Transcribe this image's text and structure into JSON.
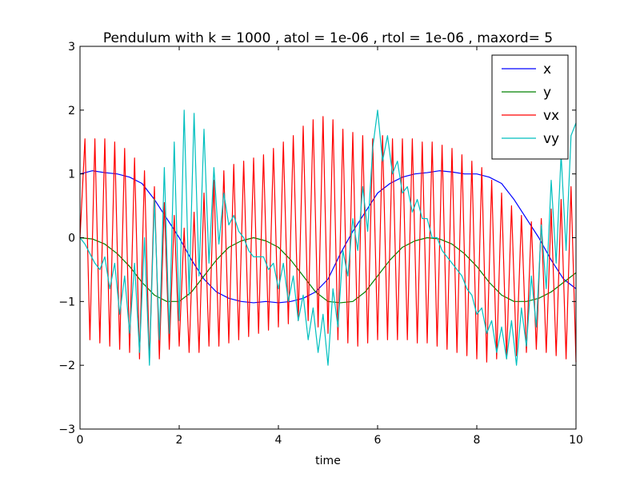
{
  "chart_data": {
    "type": "line",
    "title": "Pendulum with k = 1000 , atol = 1e-06 , rtol = 1e-06 , maxord= 5",
    "xlabel": "time",
    "ylabel": "",
    "xlim": [
      0,
      10
    ],
    "ylim": [
      -3,
      3
    ],
    "xticks": [
      0,
      2,
      4,
      6,
      8,
      10
    ],
    "yticks": [
      -3,
      -2,
      -1,
      0,
      1,
      2,
      3
    ],
    "grid": false,
    "legend_position": "top-right",
    "x_sample_step": 0.25,
    "series": [
      {
        "name": "x",
        "color": "#0000ff",
        "x": [
          0,
          0.25,
          0.5,
          0.75,
          1,
          1.25,
          1.5,
          1.75,
          2,
          2.25,
          2.5,
          2.75,
          3,
          3.25,
          3.5,
          3.75,
          4,
          4.25,
          4.5,
          4.75,
          5,
          5.25,
          5.5,
          5.75,
          6,
          6.25,
          6.5,
          6.75,
          7,
          7.25,
          7.5,
          7.75,
          8,
          8.25,
          8.5,
          8.75,
          9,
          9.25,
          9.5,
          9.75,
          10
        ],
        "values": [
          1.0,
          1.05,
          1.02,
          1.0,
          0.95,
          0.85,
          0.6,
          0.3,
          0.0,
          -0.35,
          -0.65,
          -0.85,
          -0.95,
          -1.0,
          -1.02,
          -1.0,
          -1.02,
          -1.0,
          -0.95,
          -0.85,
          -0.65,
          -0.25,
          0.1,
          0.4,
          0.7,
          0.85,
          0.95,
          1.0,
          1.02,
          1.05,
          1.03,
          1.0,
          1.0,
          0.95,
          0.85,
          0.6,
          0.3,
          0.0,
          -0.35,
          -0.65,
          -0.8
        ]
      },
      {
        "name": "y",
        "color": "#008000",
        "x": [
          0,
          0.25,
          0.5,
          0.75,
          1,
          1.25,
          1.5,
          1.75,
          2,
          2.25,
          2.5,
          2.75,
          3,
          3.25,
          3.5,
          3.75,
          4,
          4.25,
          4.5,
          4.75,
          5,
          5.25,
          5.5,
          5.75,
          6,
          6.25,
          6.5,
          6.75,
          7,
          7.25,
          7.5,
          7.75,
          8,
          8.25,
          8.5,
          8.75,
          9,
          9.25,
          9.5,
          9.75,
          10
        ],
        "values": [
          0.0,
          -0.02,
          -0.1,
          -0.25,
          -0.45,
          -0.7,
          -0.9,
          -1.0,
          -1.0,
          -0.85,
          -0.6,
          -0.35,
          -0.15,
          -0.05,
          0.0,
          -0.05,
          -0.15,
          -0.35,
          -0.6,
          -0.85,
          -1.0,
          -1.02,
          -1.0,
          -0.85,
          -0.6,
          -0.35,
          -0.15,
          -0.05,
          0.0,
          -0.02,
          -0.1,
          -0.25,
          -0.45,
          -0.7,
          -0.9,
          -1.0,
          -1.0,
          -0.95,
          -0.85,
          -0.7,
          -0.55
        ]
      },
      {
        "name": "vx",
        "color": "#ff0000",
        "x": [
          0,
          0.1,
          0.2,
          0.3,
          0.4,
          0.5,
          0.6,
          0.7,
          0.8,
          0.9,
          1,
          1.1,
          1.2,
          1.3,
          1.4,
          1.5,
          1.6,
          1.7,
          1.8,
          1.9,
          2,
          2.1,
          2.2,
          2.3,
          2.4,
          2.5,
          2.6,
          2.7,
          2.8,
          2.9,
          3,
          3.1,
          3.2,
          3.3,
          3.4,
          3.5,
          3.6,
          3.7,
          3.8,
          3.9,
          4,
          4.1,
          4.2,
          4.3,
          4.4,
          4.5,
          4.6,
          4.7,
          4.8,
          4.9,
          5,
          5.1,
          5.2,
          5.3,
          5.4,
          5.5,
          5.6,
          5.7,
          5.8,
          5.9,
          6,
          6.1,
          6.2,
          6.3,
          6.4,
          6.5,
          6.6,
          6.7,
          6.8,
          6.9,
          7,
          7.1,
          7.2,
          7.3,
          7.4,
          7.5,
          7.6,
          7.7,
          7.8,
          7.9,
          8,
          8.1,
          8.2,
          8.3,
          8.4,
          8.5,
          8.6,
          8.7,
          8.8,
          8.9,
          9,
          9.1,
          9.2,
          9.3,
          9.4,
          9.5,
          9.6,
          9.7,
          9.8,
          9.9,
          10
        ],
        "values": [
          0.0,
          1.55,
          -1.6,
          1.55,
          -1.65,
          1.55,
          -1.7,
          1.5,
          -1.75,
          1.4,
          -1.8,
          1.25,
          -1.9,
          1.05,
          -1.95,
          0.8,
          -1.9,
          0.55,
          -1.75,
          0.35,
          -1.7,
          0.15,
          -1.8,
          0.4,
          -1.8,
          0.7,
          -1.7,
          0.9,
          -1.7,
          1.05,
          -1.65,
          1.15,
          -1.6,
          1.2,
          -1.55,
          1.25,
          -1.5,
          1.3,
          -1.45,
          1.4,
          -1.4,
          1.5,
          -1.35,
          1.6,
          -1.3,
          1.75,
          -1.3,
          1.85,
          -1.4,
          1.9,
          -1.5,
          1.85,
          -1.6,
          1.7,
          -1.65,
          1.65,
          -1.7,
          1.6,
          -1.65,
          1.55,
          -1.6,
          1.6,
          -1.6,
          1.55,
          -1.6,
          1.55,
          -1.6,
          1.55,
          -1.65,
          1.5,
          -1.65,
          1.5,
          -1.7,
          1.45,
          -1.75,
          1.4,
          -1.8,
          1.3,
          -1.85,
          1.2,
          -1.9,
          1.1,
          -1.95,
          0.9,
          -1.9,
          0.7,
          -1.9,
          0.5,
          -1.85,
          0.35,
          -1.8,
          0.25,
          -1.75,
          0.3,
          -1.8,
          0.45,
          -1.85,
          0.6,
          -1.9,
          0.8,
          -1.95
        ]
      },
      {
        "name": "vy",
        "color": "#00bfbf",
        "x": [
          0,
          0.1,
          0.2,
          0.3,
          0.4,
          0.5,
          0.6,
          0.7,
          0.8,
          0.9,
          1,
          1.1,
          1.2,
          1.3,
          1.4,
          1.5,
          1.6,
          1.7,
          1.8,
          1.9,
          2,
          2.1,
          2.2,
          2.3,
          2.4,
          2.5,
          2.6,
          2.7,
          2.8,
          2.9,
          3,
          3.1,
          3.2,
          3.3,
          3.4,
          3.5,
          3.6,
          3.7,
          3.8,
          3.9,
          4,
          4.1,
          4.2,
          4.3,
          4.4,
          4.5,
          4.6,
          4.7,
          4.8,
          4.9,
          5,
          5.1,
          5.2,
          5.3,
          5.4,
          5.5,
          5.6,
          5.7,
          5.8,
          5.9,
          6,
          6.1,
          6.2,
          6.3,
          6.4,
          6.5,
          6.6,
          6.7,
          6.8,
          6.9,
          7,
          7.1,
          7.2,
          7.3,
          7.4,
          7.5,
          7.6,
          7.7,
          7.8,
          7.9,
          8,
          8.1,
          8.2,
          8.3,
          8.4,
          8.5,
          8.6,
          8.7,
          8.8,
          8.9,
          9,
          9.1,
          9.2,
          9.3,
          9.4,
          9.5,
          9.6,
          9.7,
          9.8,
          9.9,
          10
        ],
        "values": [
          0.0,
          -0.1,
          -0.25,
          -0.4,
          -0.5,
          -0.3,
          -0.8,
          -0.4,
          -1.2,
          -0.6,
          -1.5,
          -0.4,
          -1.8,
          0.0,
          -2.0,
          0.6,
          -1.6,
          1.1,
          -1.5,
          1.5,
          -1.3,
          2.0,
          -0.9,
          1.95,
          -0.6,
          1.7,
          -0.4,
          1.1,
          -0.1,
          0.7,
          0.2,
          0.35,
          0.1,
          0.0,
          -0.2,
          -0.3,
          -0.3,
          -0.3,
          -0.5,
          -0.4,
          -0.8,
          -0.4,
          -1.0,
          -0.6,
          -1.3,
          -0.9,
          -1.6,
          -1.1,
          -1.8,
          -1.2,
          -2.0,
          -0.8,
          -1.4,
          -0.2,
          -0.6,
          0.3,
          -0.2,
          0.8,
          0.1,
          1.4,
          2.0,
          1.2,
          1.6,
          1.0,
          1.2,
          0.7,
          0.8,
          0.4,
          0.6,
          0.3,
          0.3,
          0.0,
          0.0,
          -0.2,
          -0.3,
          -0.4,
          -0.5,
          -0.6,
          -0.8,
          -0.9,
          -1.2,
          -1.1,
          -1.5,
          -1.3,
          -1.8,
          -1.4,
          -1.9,
          -1.3,
          -2.0,
          -1.1,
          -1.7,
          -0.6,
          -1.4,
          0.2,
          -0.8,
          0.9,
          -0.4,
          1.3,
          -0.2,
          1.6,
          1.8
        ]
      }
    ]
  }
}
